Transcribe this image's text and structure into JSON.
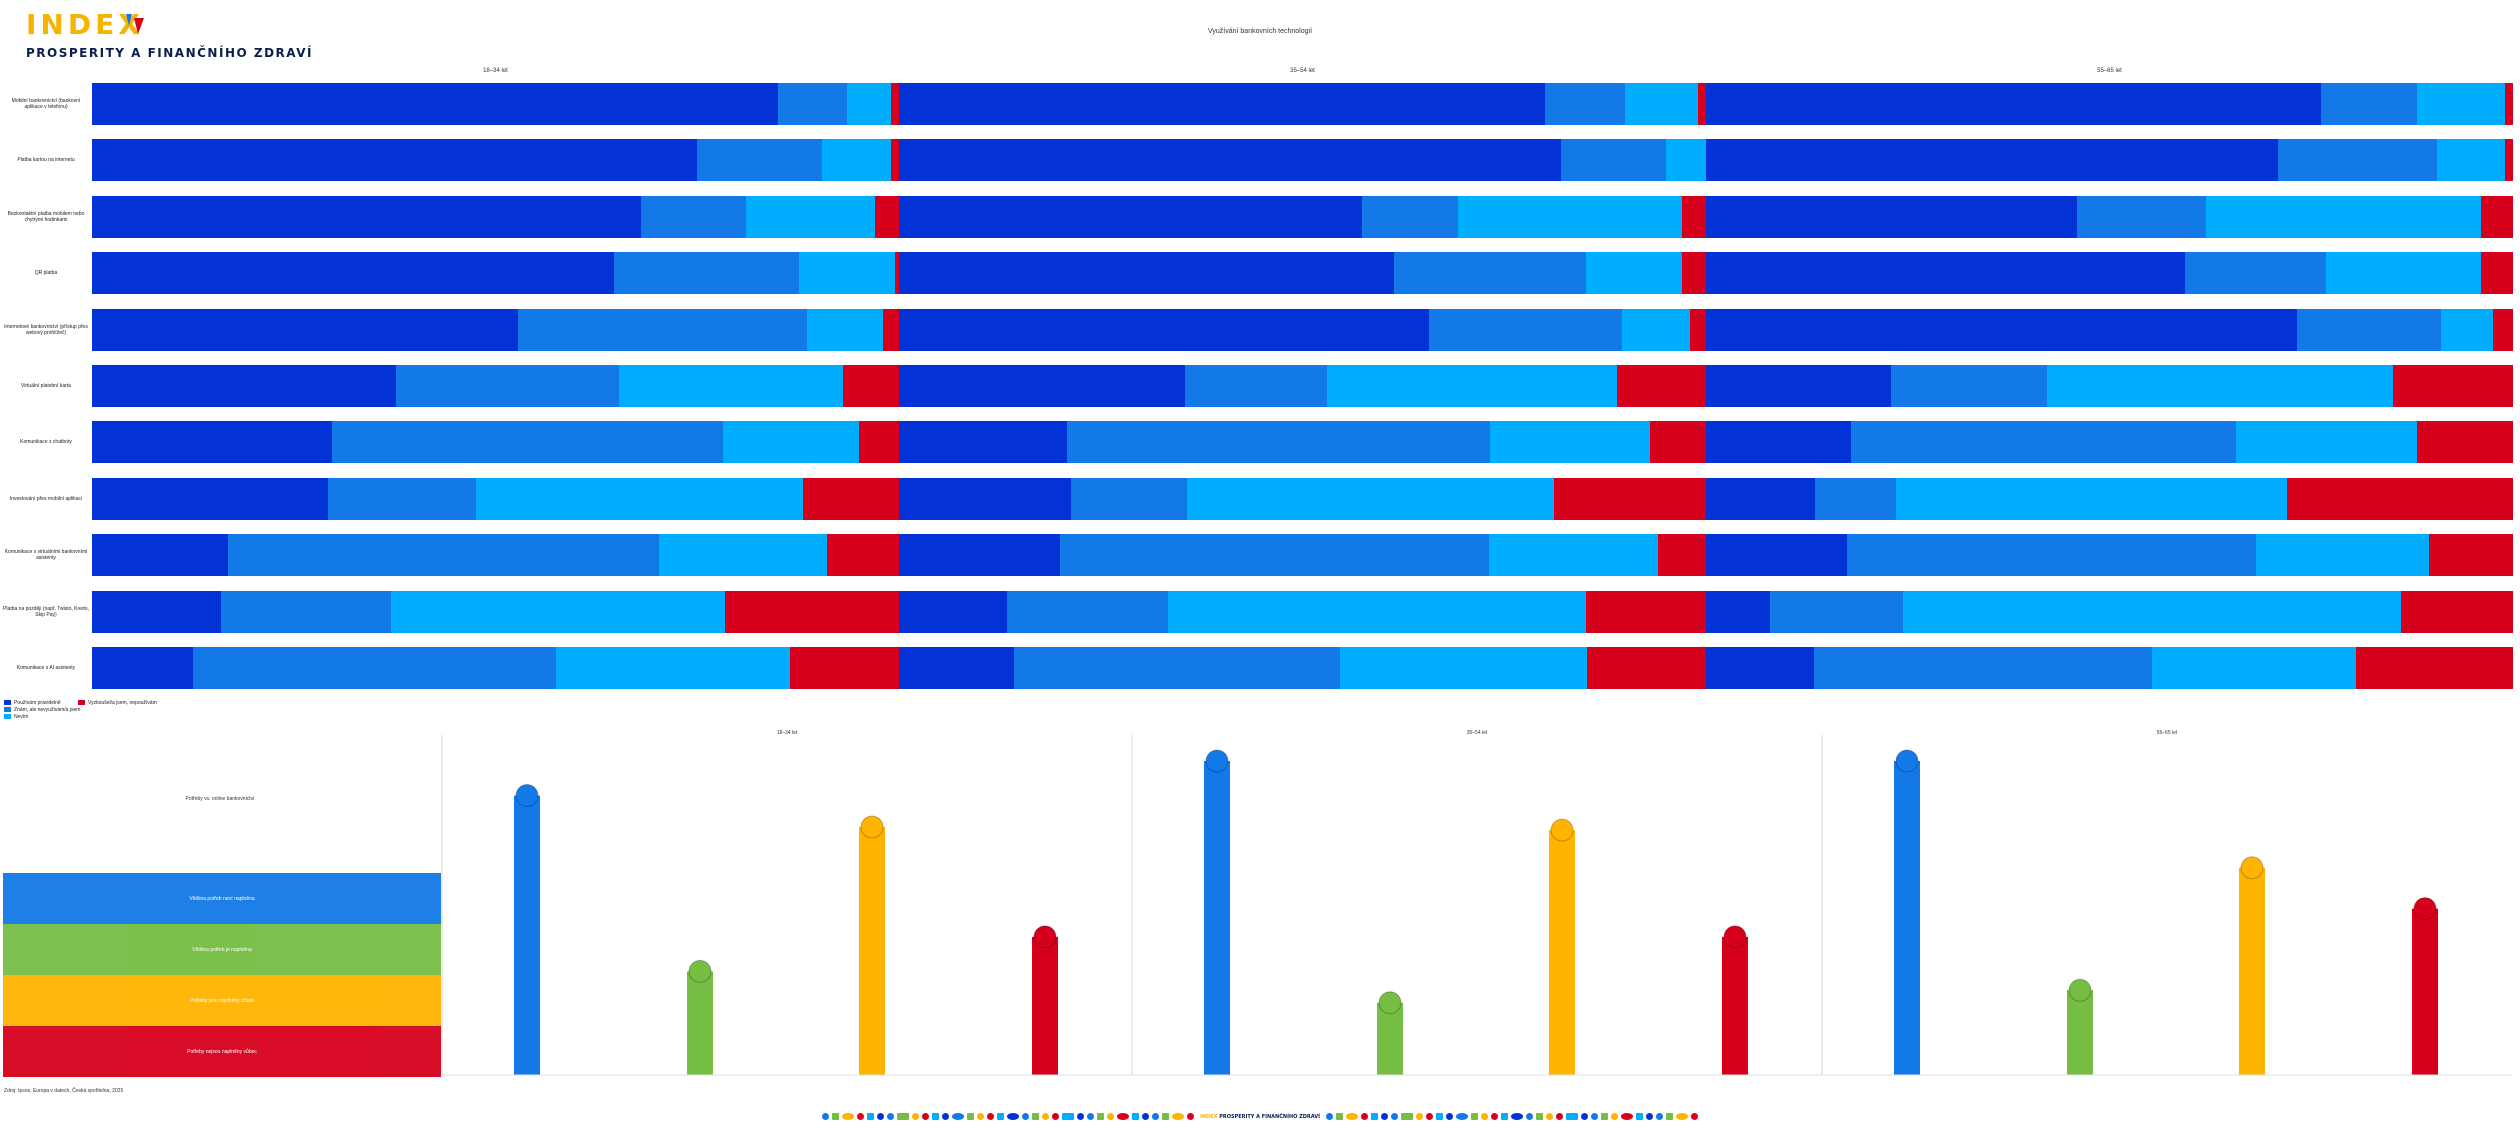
{
  "brand": {
    "index": "INDEX",
    "subtitle": "PROSPERITY A FINANČNÍHO ZDRAVÍ",
    "footer_index": "INDEX",
    "footer_subtitle": "PROSPERITY A FINANČNÍHO ZDRAVÍ"
  },
  "source": "Zdroj: Ipsos, Europa v datech, Česká spořitelna, 2025",
  "colors": {
    "dark_blue": "#0333d6",
    "mid_blue": "#1279e6",
    "light_blue": "#00adff",
    "red": "#d6001c",
    "green": "#76bd43",
    "yellow": "#ffb400",
    "navy": "#0b1f4d"
  },
  "chart_data": [
    {
      "type": "bar",
      "orientation": "horizontal-stacked-100",
      "title": "Využívání bankovních technologií",
      "groups": [
        "18–34 let",
        "35–54 let",
        "55–65 let"
      ],
      "categories": [
        "Mobilní bankovnictví (bankovní aplikace v telefonu)",
        "Platba kartou na internetu",
        "Bezkontaktní platba mobilem nebo chytrými hodinkami",
        "QR platba",
        "Internetové bankovnictví (přístup přes webový prohlížeč)",
        "Virtuální platební karta",
        "Komunikace s chatboty",
        "Investování přes mobilní aplikaci",
        "Komunikace s virtuálními bankovními asistenty",
        "Platba na později (např. Twisto, Kredo, Skip Pay)",
        "Komunikace s AI asistenty"
      ],
      "legend": [
        "Používám pravidelně",
        "Znám, ale nevyužívám/a jsem",
        "Nevím",
        "Vyzkoušel/a jsem, nepoužívám"
      ],
      "series_colors": [
        "#0333d6",
        "#1279e6",
        "#00adff",
        "#d6001c"
      ],
      "values": [
        [
          [
            85,
            8.5,
            5.5,
            1
          ],
          [
            80,
            10,
            9,
            1
          ],
          [
            77,
            12,
            11,
            1
          ]
        ],
        [
          [
            75,
            15.5,
            8.5,
            1
          ],
          [
            82,
            13,
            5,
            0
          ],
          [
            72,
            20,
            8.5,
            1
          ]
        ],
        [
          [
            68,
            13,
            16,
            3
          ],
          [
            58,
            12,
            28,
            3
          ],
          [
            46,
            16,
            34,
            4
          ]
        ],
        [
          [
            65,
            23,
            12,
            0.5
          ],
          [
            62,
            24,
            12,
            3
          ],
          [
            59,
            17.5,
            19,
            4
          ]
        ],
        [
          [
            53,
            36,
            9.5,
            2
          ],
          [
            66,
            24,
            8.5,
            2
          ],
          [
            74,
            18,
            6.5,
            2.5
          ]
        ],
        [
          [
            38,
            28,
            28,
            7
          ],
          [
            35.5,
            17.5,
            36,
            11
          ],
          [
            23,
            19.5,
            43,
            15
          ]
        ],
        [
          [
            30,
            49,
            17,
            5
          ],
          [
            21,
            53,
            20,
            7
          ],
          [
            18,
            48,
            22.5,
            12
          ]
        ],
        [
          [
            29.5,
            18.5,
            41,
            12
          ],
          [
            21.5,
            14.5,
            46,
            19
          ],
          [
            13.5,
            10,
            48.5,
            28
          ]
        ],
        [
          [
            17,
            54,
            21,
            9
          ],
          [
            20,
            53.5,
            21,
            6
          ],
          [
            17.5,
            51,
            21.5,
            10.5
          ]
        ],
        [
          [
            16,
            21,
            41.5,
            21.5
          ],
          [
            13.5,
            20,
            52,
            15
          ],
          [
            8,
            16.5,
            62,
            14
          ]
        ],
        [
          [
            12.5,
            45,
            29,
            13.5
          ],
          [
            14.5,
            41,
            31,
            15
          ],
          [
            13.5,
            42,
            25.5,
            19.5
          ]
        ]
      ]
    },
    {
      "type": "bar",
      "orientation": "vertical",
      "groups": [
        "18–34 let",
        "35–54 let",
        "55–65 let"
      ],
      "series": [
        {
          "name": "Většina potřeb není naplněna",
          "color": "#1279e6",
          "values": [
            0.89,
            1.0,
            1.0
          ]
        },
        {
          "name": "Většina potřeb je naplněna",
          "color": "#76bd43",
          "values": [
            0.33,
            0.23,
            0.27
          ]
        },
        {
          "name": "Potřeby jsou naplněny zčásti",
          "color": "#ffb400",
          "values": [
            0.79,
            0.78,
            0.66
          ]
        },
        {
          "name": "Potřeby nejsou naplněny vůbec",
          "color": "#d6001c",
          "values": [
            0.44,
            0.44,
            0.53
          ]
        }
      ],
      "bands": [
        {
          "label": "Většina potřeb není naplněna",
          "color": "#1279e6"
        },
        {
          "label": "Většina potřeb je naplněna",
          "color": "#76bd43"
        },
        {
          "label": "Potřeby jsou naplněny zčásti",
          "color": "#ffb400"
        },
        {
          "label": "Potřeby nejsou naplněny vůbec",
          "color": "#d6001c"
        }
      ],
      "heading": "Potřeby vs. online bankovnictví"
    }
  ]
}
